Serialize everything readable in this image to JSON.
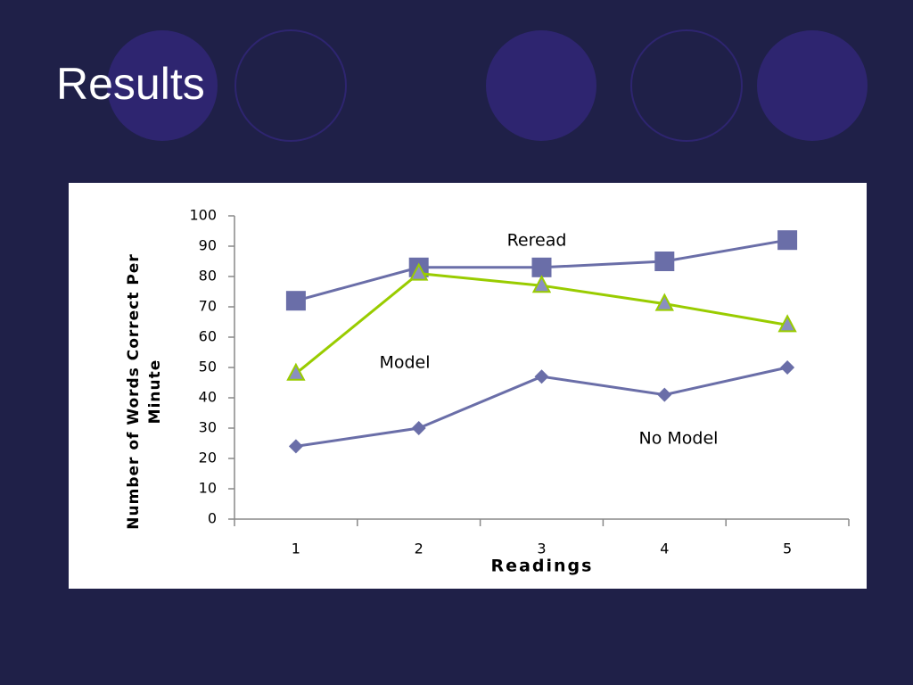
{
  "slide": {
    "title": "Results"
  },
  "chart_data": {
    "type": "line",
    "x_label": "Readings",
    "y_label": "Number of Words Correct Per Minute",
    "categories": [
      "1",
      "2",
      "3",
      "4",
      "5"
    ],
    "series": [
      {
        "name": "Reread",
        "color": "#6a6ea8",
        "marker": "square",
        "values": [
          72,
          83,
          83,
          85,
          92
        ]
      },
      {
        "name": "Model",
        "color": "#99cc00",
        "marker": "triangle",
        "values": [
          48,
          81,
          77,
          71,
          64
        ]
      },
      {
        "name": "No Model",
        "color": "#6a6ea8",
        "marker": "diamond",
        "values": [
          24,
          30,
          47,
          41,
          50
        ]
      }
    ],
    "ylim": [
      0,
      100
    ],
    "yticks": [
      0,
      10,
      20,
      30,
      40,
      50,
      60,
      70,
      80,
      90,
      100
    ]
  }
}
